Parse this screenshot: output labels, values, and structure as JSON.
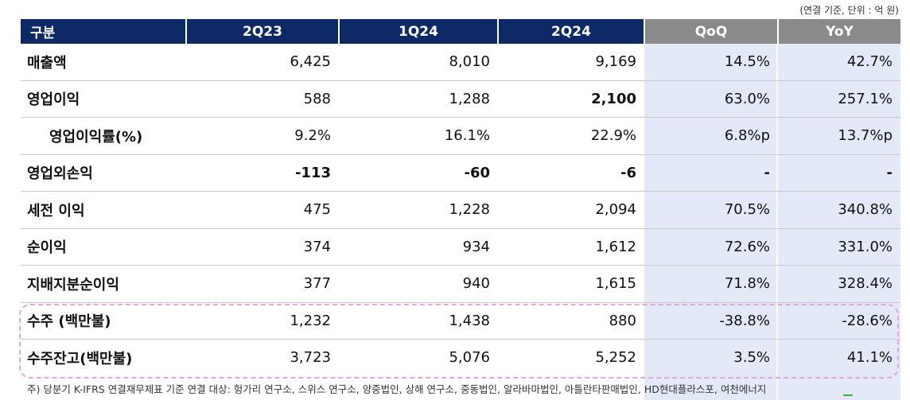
{
  "unit_note": "(연결 기준, 단위 : 억 원)",
  "headers": [
    "구분",
    "2Q23",
    "1Q24",
    "2Q24",
    "QoQ",
    "YoY"
  ],
  "rows": [
    {
      "label": "매출액",
      "cells": [
        "6,425",
        "8,010",
        "9,169",
        "14.5%",
        "42.7%"
      ]
    },
    {
      "label": "영업이익",
      "cells": [
        "588",
        "1,288",
        "2,100",
        "63.0%",
        "257.1%"
      ]
    },
    {
      "label": "영업이익률(%)",
      "cells": [
        "9.2%",
        "16.1%",
        "22.9%",
        "6.8%p",
        "13.7%p"
      ]
    },
    {
      "label": "영업외손익",
      "cells": [
        "-113",
        "-60",
        "-6",
        "-",
        "-"
      ]
    },
    {
      "label": "세전 이익",
      "cells": [
        "475",
        "1,228",
        "2,094",
        "70.5%",
        "340.8%"
      ]
    },
    {
      "label": "순이익",
      "cells": [
        "374",
        "934",
        "1,612",
        "72.6%",
        "331.0%"
      ]
    },
    {
      "label": "지배지분순이익",
      "cells": [
        "377",
        "940",
        "1,615",
        "71.8%",
        "328.4%"
      ]
    },
    {
      "label": "수주 (백만불)",
      "cells": [
        "1,232",
        "1,438",
        "880",
        "-38.8%",
        "-28.6%"
      ]
    },
    {
      "label": "수주잔고(백만불)",
      "cells": [
        "3,723",
        "5,076",
        "5,252",
        "3.5%",
        "41.1%"
      ]
    }
  ],
  "footnote": "주) 당분기 K-IFRS 연결재무제표 기준 연결 대상: 헝가리 연구소, 스위스 연구소, 양중법인, 상해 연구소, 중동법인, 알라바마법인, 아틀란타판매법인, HD현대플라스포, 여천에너지",
  "colors": {
    "header_navy": "#0d2a66",
    "header_grey": "#8a8a8a",
    "highlight_bg": "#e3e9f7",
    "dash_border": "#e2a6de"
  }
}
